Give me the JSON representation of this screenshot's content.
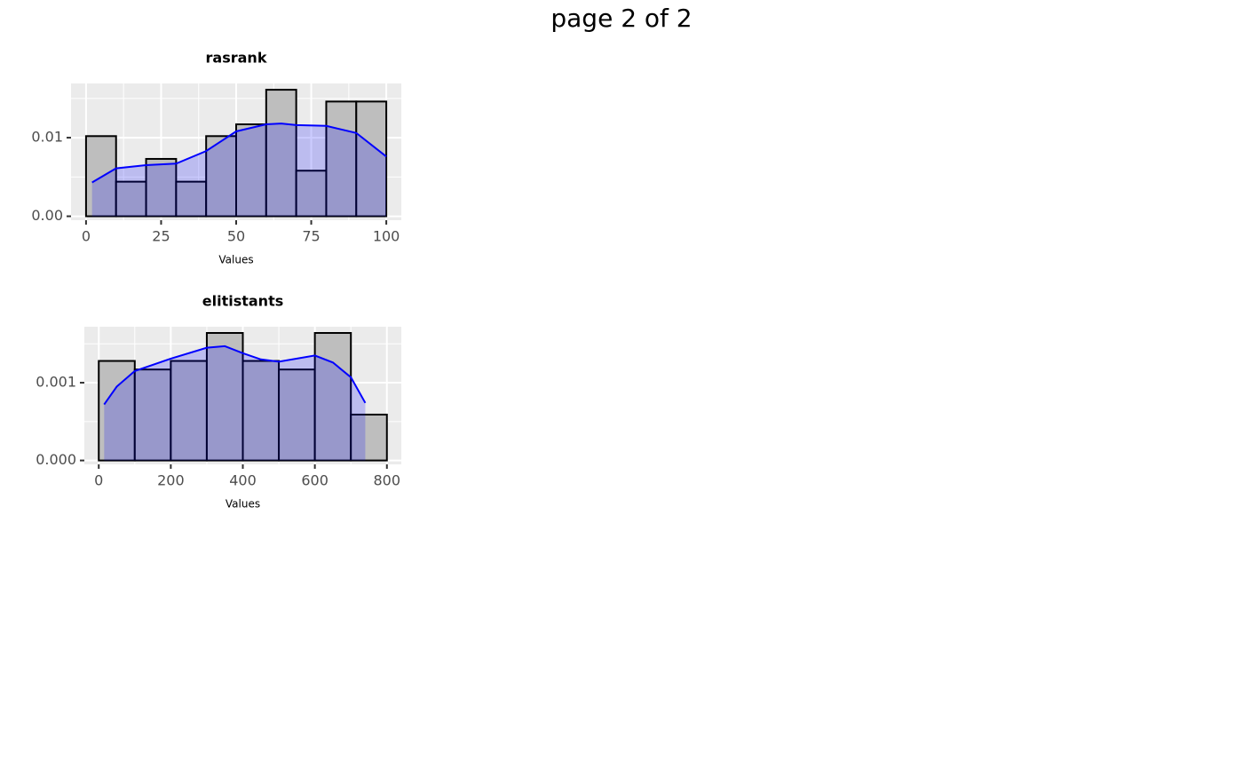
{
  "title": "page 2 of 2",
  "chart_data": [
    {
      "type": "histogram",
      "title": "rasrank",
      "x_label": "Values",
      "bins": [
        0,
        10,
        20,
        30,
        40,
        50,
        60,
        70,
        80,
        90,
        100
      ],
      "values": [
        0.0102,
        0.0044,
        0.0073,
        0.0044,
        0.0102,
        0.0117,
        0.0161,
        0.0058,
        0.0146,
        0.0146
      ],
      "color": "#bebebe",
      "edgecolor": "#000000",
      "density": {
        "x": [
          2,
          10,
          20,
          30,
          40,
          50,
          60,
          65,
          70,
          80,
          90,
          100
        ],
        "y": [
          0.0043,
          0.0061,
          0.0065,
          0.0067,
          0.0083,
          0.0108,
          0.0117,
          0.0118,
          0.0116,
          0.0115,
          0.0106,
          0.0076
        ],
        "color": "#0000ff",
        "fill": "rgba(0,0,255,0.2)"
      },
      "xlim": [
        -5,
        105
      ],
      "ylim": [
        -0.0005,
        0.0169
      ],
      "xticks": [
        0,
        25,
        50,
        75,
        100
      ],
      "yticks": [
        {
          "value": 0,
          "label": "0.00"
        },
        0.01
      ],
      "xticks_minor": [
        12.5,
        37.5,
        62.5,
        87.5
      ],
      "yticks_minor": [
        0.005,
        0.015
      ],
      "grid": true
    },
    {
      "type": "histogram",
      "title": "elitistants",
      "x_label": "Values",
      "bins": [
        0,
        100,
        200,
        300,
        400,
        500,
        600,
        700,
        800
      ],
      "values": [
        0.00128,
        0.00117,
        0.00128,
        0.00164,
        0.00128,
        0.00117,
        0.00164,
        0.00059
      ],
      "color": "#bebebe",
      "edgecolor": "#000000",
      "density": {
        "x": [
          15,
          50,
          100,
          200,
          300,
          350,
          400,
          450,
          500,
          600,
          650,
          700,
          740
        ],
        "y": [
          0.00072,
          0.00095,
          0.00115,
          0.00131,
          0.00145,
          0.00147,
          0.00138,
          0.0013,
          0.00127,
          0.00135,
          0.00126,
          0.00107,
          0.00074
        ],
        "color": "#0000ff",
        "fill": "rgba(0,0,255,0.2)"
      },
      "xlim": [
        -40,
        840
      ],
      "ylim": [
        -5e-05,
        0.00172
      ],
      "xticks": [
        0,
        200,
        400,
        600,
        800
      ],
      "yticks": [
        {
          "value": 0,
          "label": "0.000"
        },
        0.001
      ],
      "xticks_minor": [
        100,
        300,
        500,
        700
      ],
      "yticks_minor": [
        0.0005,
        0.0015
      ],
      "grid": true
    }
  ]
}
